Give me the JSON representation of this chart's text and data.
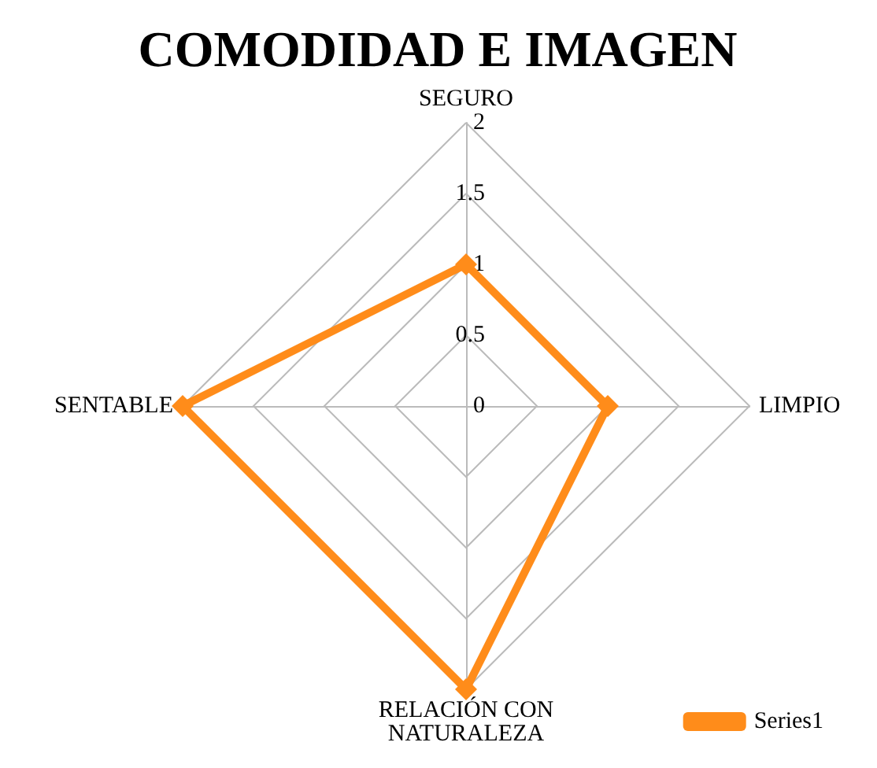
{
  "chart_data": {
    "type": "radar",
    "title": "COMODIDAD E IMAGEN",
    "categories": [
      "SEGURO",
      "LIMPIO",
      "RELACIÓN CON\nNATURALEZA",
      "SENTABLE"
    ],
    "series": [
      {
        "name": "Series1",
        "color": "#ff8c1a",
        "values": [
          1,
          1,
          2,
          2
        ]
      }
    ],
    "ylim": [
      0,
      2
    ],
    "yticks": [
      0,
      0.5,
      1,
      1.5,
      2
    ],
    "legend": "bottom right",
    "marker": "diamond",
    "line_style": "solid"
  }
}
